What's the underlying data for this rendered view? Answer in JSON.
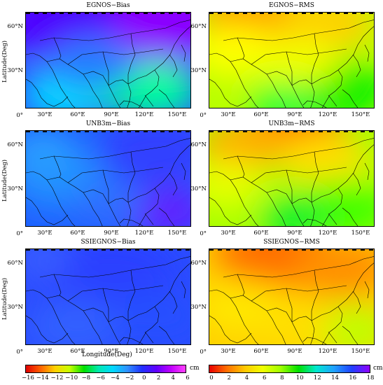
{
  "panels": [
    {
      "title": "EGNOS−Bias",
      "kind": "bias",
      "variant": 0
    },
    {
      "title": "EGNOS−RMS",
      "kind": "rms",
      "variant": 0
    },
    {
      "title": "UNB3m−Bias",
      "kind": "bias",
      "variant": 1
    },
    {
      "title": "UNB3m−RMS",
      "kind": "rms",
      "variant": 1
    },
    {
      "title": "SSIEGNOS−Bias",
      "kind": "bias",
      "variant": 2
    },
    {
      "title": "SSIEGNOS−RMS",
      "kind": "rms",
      "variant": 2
    }
  ],
  "axes": {
    "ylabel": "Latitude(Deg)",
    "xlabel": "Longitude(Deg)",
    "lat_ticks": [
      "60°N",
      "30°N",
      "0°"
    ],
    "lon_ticks": [
      "30°E",
      "60°E",
      "90°E",
      "120°E",
      "150°E"
    ]
  },
  "colorbars": {
    "bias": {
      "ticks": [
        "−16",
        "−14",
        "−12",
        "−10",
        "−8",
        "−6",
        "−4",
        "−2",
        "0",
        "2",
        "4",
        "6"
      ],
      "unit": "cm",
      "range": [
        -16,
        6
      ]
    },
    "rms": {
      "ticks": [
        "0",
        "2",
        "4",
        "6",
        "8",
        "10",
        "12",
        "14",
        "16",
        "18"
      ],
      "unit": "cm",
      "range": [
        0,
        18
      ]
    }
  },
  "colors": {
    "bias_scale": [
      "#e00000",
      "#ff6000",
      "#ffd000",
      "#c8ff00",
      "#00e000",
      "#00e8b0",
      "#00d8ff",
      "#3090ff",
      "#2030ff",
      "#6000ff",
      "#c000ff",
      "#ff40ff"
    ],
    "rms_scale": [
      "#e80000",
      "#ff7000",
      "#ffc800",
      "#f0ff00",
      "#a0ff00",
      "#00e000",
      "#00e8d0",
      "#20a0ff",
      "#2040ff",
      "#9000ff"
    ]
  }
}
